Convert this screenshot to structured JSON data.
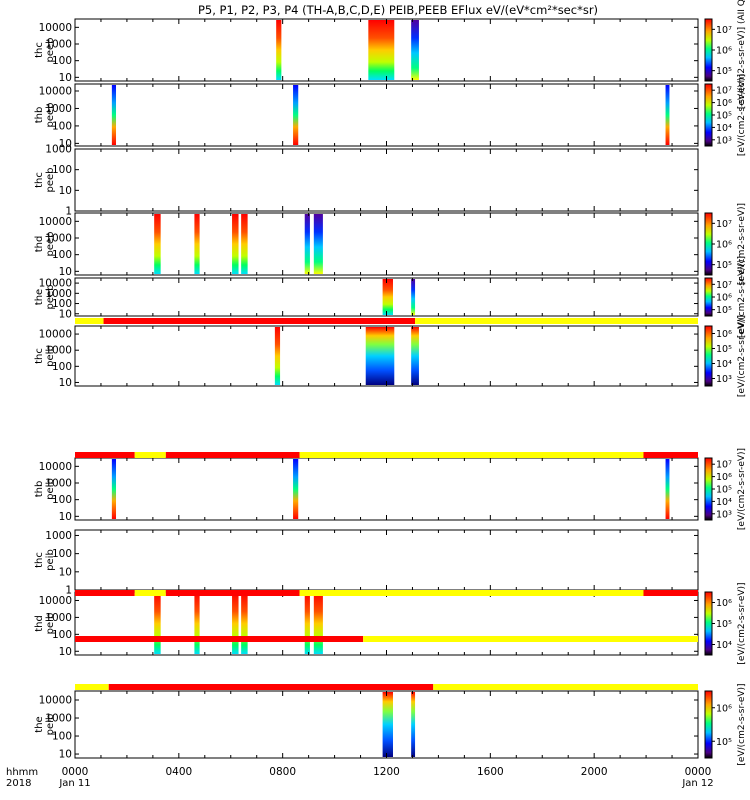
{
  "title": "P5, P1, P2, P3, P4 (TH-A,B,C,D,E) PEIB,PEEB EFlux eV/(eV*cm²*sec*sr)",
  "time_axis": {
    "label_line1": "hhmm",
    "label_line2": "2018",
    "ticks": [
      {
        "hour": 0,
        "label": "0000",
        "sub": "Jan 11"
      },
      {
        "hour": 4,
        "label": "0400",
        "sub": ""
      },
      {
        "hour": 8,
        "label": "0800",
        "sub": ""
      },
      {
        "hour": 12,
        "label": "1200",
        "sub": ""
      },
      {
        "hour": 16,
        "label": "1600",
        "sub": ""
      },
      {
        "hour": 20,
        "label": "2000",
        "sub": ""
      },
      {
        "hour": 24,
        "label": "0000",
        "sub": "Jan 12"
      }
    ]
  },
  "chart_data": {
    "type": "heatmap",
    "x_range_hours": [
      0,
      24
    ],
    "panels": [
      {
        "id": "thc_peeb_top",
        "probe": "thc",
        "species": "peeb",
        "y_ticks": [
          {
            "v": 10,
            "label": "10"
          },
          {
            "v": 100,
            "label": "100"
          },
          {
            "v": 1000,
            "label": "1000"
          },
          {
            "v": 10000,
            "label": "10000"
          }
        ],
        "ylim_log": [
          0.78,
          4.5
        ],
        "colorbar": {
          "ticks": [
            "10⁵",
            "10⁶",
            "10⁷"
          ],
          "label": "[eV/(cm2-s-sr-eV)] (AII Qs)"
        },
        "bursts": [
          {
            "start": 7.75,
            "end": 7.95,
            "profile": "hot"
          },
          {
            "start": 11.3,
            "end": 12.3,
            "profile": "hot"
          },
          {
            "start": 12.95,
            "end": 13.25,
            "profile": "cold"
          }
        ]
      },
      {
        "id": "thb_peeb",
        "probe": "thb",
        "species": "peeb",
        "y_ticks": [
          {
            "v": 10,
            "label": "10"
          },
          {
            "v": 100,
            "label": "100"
          },
          {
            "v": 1000,
            "label": "1000"
          },
          {
            "v": 10000,
            "label": "10000"
          }
        ],
        "ylim_log": [
          0.85,
          4.4
        ],
        "colorbar": {
          "ticks": [
            "10³",
            "10⁴",
            "10⁵",
            "10⁶",
            "10⁷"
          ],
          "label": "[eV/(cm2-s-sr-eV)]"
        },
        "bursts": [
          {
            "start": 1.42,
            "end": 1.58,
            "profile": "narrow"
          },
          {
            "start": 8.4,
            "end": 8.6,
            "profile": "narrow"
          },
          {
            "start": 22.75,
            "end": 22.9,
            "profile": "narrow"
          }
        ]
      },
      {
        "id": "thc_peeb_empty",
        "probe": "thc",
        "species": "peeb",
        "y_ticks": [
          {
            "v": 1,
            "label": "1"
          },
          {
            "v": 10,
            "label": "10"
          },
          {
            "v": 100,
            "label": "100"
          },
          {
            "v": 1000,
            "label": "1000"
          }
        ],
        "ylim_log": [
          0,
          3
        ],
        "colorbar": null,
        "bursts": []
      },
      {
        "id": "thd_peeb",
        "probe": "thd",
        "species": "peeb",
        "y_ticks": [
          {
            "v": 10,
            "label": "10"
          },
          {
            "v": 100,
            "label": "100"
          },
          {
            "v": 1000,
            "label": "1000"
          },
          {
            "v": 10000,
            "label": "10000"
          }
        ],
        "ylim_log": [
          0.78,
          4.5
        ],
        "colorbar": {
          "ticks": [
            "10⁵",
            "10⁶",
            "10⁷"
          ],
          "label": "[eV/(cm2-s-sr-eV)]"
        },
        "bursts": [
          {
            "start": 3.05,
            "end": 3.3,
            "profile": "hot"
          },
          {
            "start": 4.6,
            "end": 4.8,
            "profile": "hot"
          },
          {
            "start": 6.05,
            "end": 6.3,
            "profile": "hot"
          },
          {
            "start": 6.4,
            "end": 6.65,
            "profile": "hot"
          },
          {
            "start": 8.85,
            "end": 9.05,
            "profile": "cold"
          },
          {
            "start": 9.2,
            "end": 9.55,
            "profile": "cold"
          }
        ]
      },
      {
        "id": "the_peeb",
        "probe": "the",
        "species": "peeb",
        "y_ticks": [
          {
            "v": 10,
            "label": "10"
          },
          {
            "v": 100,
            "label": "100"
          },
          {
            "v": 1000,
            "label": "1000"
          },
          {
            "v": 10000,
            "label": "10000"
          }
        ],
        "ylim_log": [
          0.78,
          4.5
        ],
        "colorbar": {
          "ticks": [
            "10⁵",
            "10⁶",
            "10⁷"
          ],
          "label": "[eV/(cm2-s-sr-eV)]"
        },
        "bursts": [
          {
            "start": 11.85,
            "end": 12.25,
            "profile": "hot"
          },
          {
            "start": 12.95,
            "end": 13.1,
            "profile": "cold"
          }
        ]
      },
      {
        "id": "thc_peib",
        "probe": "thc",
        "species": "peib",
        "y_ticks": [
          {
            "v": 10,
            "label": "10"
          },
          {
            "v": 100,
            "label": "100"
          },
          {
            "v": 1000,
            "label": "1000"
          },
          {
            "v": 10000,
            "label": "10000"
          }
        ],
        "ylim_log": [
          0.78,
          4.5
        ],
        "colorbar": {
          "ticks": [
            "10³",
            "10⁴",
            "10⁵",
            "10⁶"
          ],
          "label": "[eV/(cm2-s-sr-eV)]"
        },
        "bursts": [
          {
            "start": 7.7,
            "end": 7.9,
            "profile": "hot"
          },
          {
            "start": 11.2,
            "end": 12.3,
            "profile": "ion"
          },
          {
            "start": 12.95,
            "end": 13.25,
            "profile": "ion"
          }
        ]
      },
      {
        "id": "thb_peib",
        "probe": "thb",
        "species": "peib",
        "y_ticks": [
          {
            "v": 10,
            "label": "10"
          },
          {
            "v": 100,
            "label": "100"
          },
          {
            "v": 1000,
            "label": "1000"
          },
          {
            "v": 10000,
            "label": "10000"
          }
        ],
        "ylim_log": [
          0.78,
          4.5
        ],
        "colorbar": {
          "ticks": [
            "10³",
            "10⁴",
            "10⁵",
            "10⁶",
            "10⁷"
          ],
          "label": "[eV/(cm2-s-sr-eV)]"
        },
        "bursts": [
          {
            "start": 1.42,
            "end": 1.58,
            "profile": "narrow"
          },
          {
            "start": 8.4,
            "end": 8.6,
            "profile": "narrow"
          },
          {
            "start": 22.75,
            "end": 22.9,
            "profile": "narrow"
          }
        ]
      },
      {
        "id": "thc_peib_empty",
        "probe": "thc",
        "species": "peib",
        "y_ticks": [
          {
            "v": 1,
            "label": "1"
          },
          {
            "v": 10,
            "label": "10"
          },
          {
            "v": 100,
            "label": "100"
          },
          {
            "v": 1000,
            "label": "1000"
          }
        ],
        "ylim_log": [
          0,
          3.3
        ],
        "colorbar": null,
        "bursts": []
      },
      {
        "id": "thd_peib",
        "probe": "thd",
        "species": "peib",
        "y_ticks": [
          {
            "v": 10,
            "label": "10"
          },
          {
            "v": 100,
            "label": "100"
          },
          {
            "v": 1000,
            "label": "1000"
          },
          {
            "v": 10000,
            "label": "10000"
          }
        ],
        "ylim_log": [
          0.78,
          4.5
        ],
        "colorbar": {
          "ticks": [
            "10⁴",
            "10⁵",
            "10⁶"
          ],
          "label": "[eV/(cm2-s-sr-eV)]"
        },
        "bursts": [
          {
            "start": 3.05,
            "end": 3.3,
            "profile": "hot"
          },
          {
            "start": 4.6,
            "end": 4.8,
            "profile": "hot"
          },
          {
            "start": 6.05,
            "end": 6.3,
            "profile": "hot"
          },
          {
            "start": 6.4,
            "end": 6.65,
            "profile": "hot"
          },
          {
            "start": 8.85,
            "end": 9.05,
            "profile": "hot"
          },
          {
            "start": 9.2,
            "end": 9.55,
            "profile": "hot"
          }
        ]
      },
      {
        "id": "the_peib",
        "probe": "the",
        "species": "peib",
        "y_ticks": [
          {
            "v": 10,
            "label": "10"
          },
          {
            "v": 100,
            "label": "100"
          },
          {
            "v": 1000,
            "label": "1000"
          },
          {
            "v": 10000,
            "label": "10000"
          }
        ],
        "ylim_log": [
          0.78,
          4.5
        ],
        "colorbar": {
          "ticks": [
            "10⁵",
            "10⁶"
          ],
          "label": "[eV/(cm2-s-sr-eV)]"
        },
        "bursts": [
          {
            "start": 11.85,
            "end": 12.25,
            "profile": "ion"
          },
          {
            "start": 12.95,
            "end": 13.1,
            "profile": "ion"
          }
        ]
      }
    ],
    "mode_bars": [
      {
        "after_panel": 4,
        "segments": [
          {
            "start": 0,
            "end": 1.1,
            "color": "#ffff00"
          },
          {
            "start": 1.1,
            "end": 13.1,
            "color": "#ff0000"
          },
          {
            "start": 13.1,
            "end": 24,
            "color": "#ffff00"
          }
        ]
      },
      {
        "after_panel": 5,
        "segments": [
          {
            "start": 0,
            "end": 2.3,
            "color": "#ff0000"
          },
          {
            "start": 2.3,
            "end": 3.5,
            "color": "#ffff00"
          },
          {
            "start": 3.5,
            "end": 8.65,
            "color": "#ff0000"
          },
          {
            "start": 8.65,
            "end": 21.9,
            "color": "#ffff00"
          },
          {
            "start": 21.9,
            "end": 24,
            "color": "#ff0000"
          }
        ]
      },
      {
        "after_panel": 6,
        "segments": [
          {
            "start": 0,
            "end": 2.3,
            "color": "#ff0000"
          },
          {
            "start": 2.3,
            "end": 3.5,
            "color": "#ffff00"
          },
          {
            "start": 3.5,
            "end": 8.65,
            "color": "#ff0000"
          },
          {
            "start": 8.65,
            "end": 21.9,
            "color": "#ffff00"
          },
          {
            "start": 21.9,
            "end": 24,
            "color": "#ff0000"
          }
        ]
      },
      {
        "after_panel": 7,
        "segments": [
          {
            "start": 0,
            "end": 11.1,
            "color": "#ff0000"
          },
          {
            "start": 11.1,
            "end": 24,
            "color": "#ffff00"
          }
        ]
      },
      {
        "after_panel": 8,
        "segments": [
          {
            "start": 0,
            "end": 1.3,
            "color": "#ffff00"
          },
          {
            "start": 1.3,
            "end": 13.8,
            "color": "#ff0000"
          },
          {
            "start": 13.8,
            "end": 24,
            "color": "#ffff00"
          }
        ]
      }
    ]
  }
}
